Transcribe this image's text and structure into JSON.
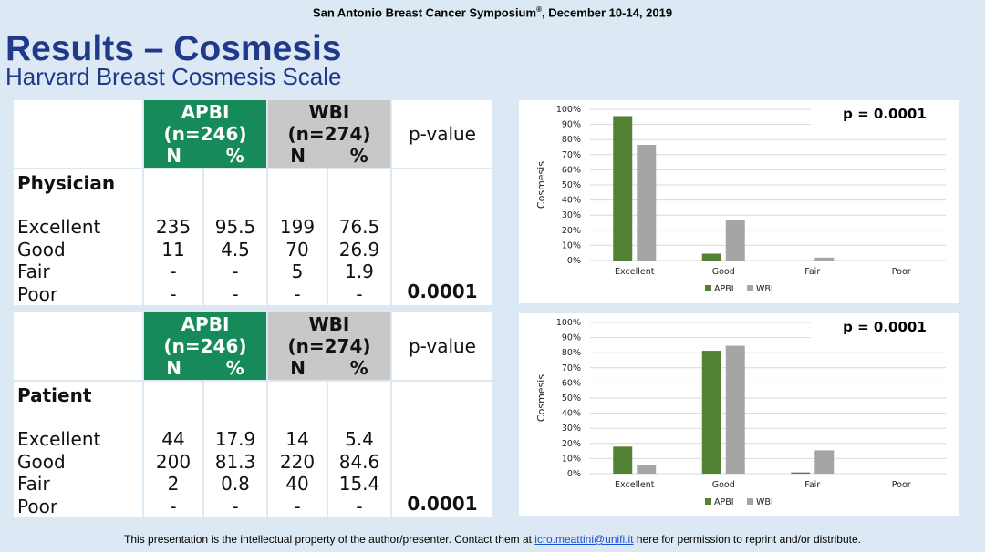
{
  "header": {
    "conference": "San Antonio Breast Cancer Symposium",
    "reg": "®",
    "dates": ", December 10-14, 2019"
  },
  "title": "Results – Cosmesis",
  "subtitle": "Harvard Breast Cosmesis Scale",
  "tables": [
    {
      "section": "Physician",
      "apbi": {
        "name": "APBI",
        "n_label": "(n=246)"
      },
      "wbi": {
        "name": "WBI",
        "n_label": "(n=274)"
      },
      "col_n": "N",
      "col_pct": "%",
      "pvalue_header": "p-value",
      "categories": [
        "Excellent",
        "Good",
        "Fair",
        "Poor"
      ],
      "apbi_n": [
        "235",
        "11",
        "-",
        "-"
      ],
      "apbi_pct": [
        "95.5",
        "4.5",
        "-",
        "-"
      ],
      "wbi_n": [
        "199",
        "70",
        "5",
        "-"
      ],
      "wbi_pct": [
        "76.5",
        "26.9",
        "1.9",
        "-"
      ],
      "pvalue": "0.0001"
    },
    {
      "section": "Patient",
      "apbi": {
        "name": "APBI",
        "n_label": "(n=246)"
      },
      "wbi": {
        "name": "WBI",
        "n_label": "(n=274)"
      },
      "col_n": "N",
      "col_pct": "%",
      "pvalue_header": "p-value",
      "categories": [
        "Excellent",
        "Good",
        "Fair",
        "Poor"
      ],
      "apbi_n": [
        "44",
        "200",
        "2",
        "-"
      ],
      "apbi_pct": [
        "17.9",
        "81.3",
        "0.8",
        "-"
      ],
      "wbi_n": [
        "14",
        "220",
        "40",
        "-"
      ],
      "wbi_pct": [
        "5.4",
        "84.6",
        "15.4",
        "-"
      ],
      "pvalue": "0.0001"
    }
  ],
  "chart_data": [
    {
      "type": "bar",
      "ylabel": "Cosmesis",
      "categories": [
        "Excellent",
        "Good",
        "Fair",
        "Poor"
      ],
      "yticks": [
        "0%",
        "10%",
        "20%",
        "30%",
        "40%",
        "50%",
        "60%",
        "70%",
        "80%",
        "90%",
        "100%"
      ],
      "ylim": [
        0,
        100
      ],
      "series": [
        {
          "name": "APBI",
          "color": "#548235",
          "values": [
            95.5,
            4.5,
            0,
            0
          ]
        },
        {
          "name": "WBI",
          "color": "#a5a5a5",
          "values": [
            76.5,
            26.9,
            1.9,
            0
          ]
        }
      ],
      "annotation": "p = 0.0001",
      "legend": "bottom"
    },
    {
      "type": "bar",
      "ylabel": "Cosmesis",
      "categories": [
        "Excellent",
        "Good",
        "Fair",
        "Poor"
      ],
      "yticks": [
        "0%",
        "10%",
        "20%",
        "30%",
        "40%",
        "50%",
        "60%",
        "70%",
        "80%",
        "90%",
        "100%"
      ],
      "ylim": [
        0,
        100
      ],
      "series": [
        {
          "name": "APBI",
          "color": "#548235",
          "values": [
            17.9,
            81.3,
            0.8,
            0
          ]
        },
        {
          "name": "WBI",
          "color": "#a5a5a5",
          "values": [
            5.4,
            84.6,
            15.4,
            0
          ]
        }
      ],
      "annotation": "p = 0.0001",
      "legend": "bottom"
    }
  ],
  "footer": {
    "text_before": "This presentation is the intellectual property of the author/presenter. Contact them at ",
    "email": "icro.meattini@unifi.it",
    "text_after": " here for permission to reprint and/or distribute."
  },
  "colors": {
    "title": "#1f3a8a",
    "apbi_header": "#178a5a",
    "wbi_header": "#c8c8c8",
    "background": "#dce8f3"
  }
}
